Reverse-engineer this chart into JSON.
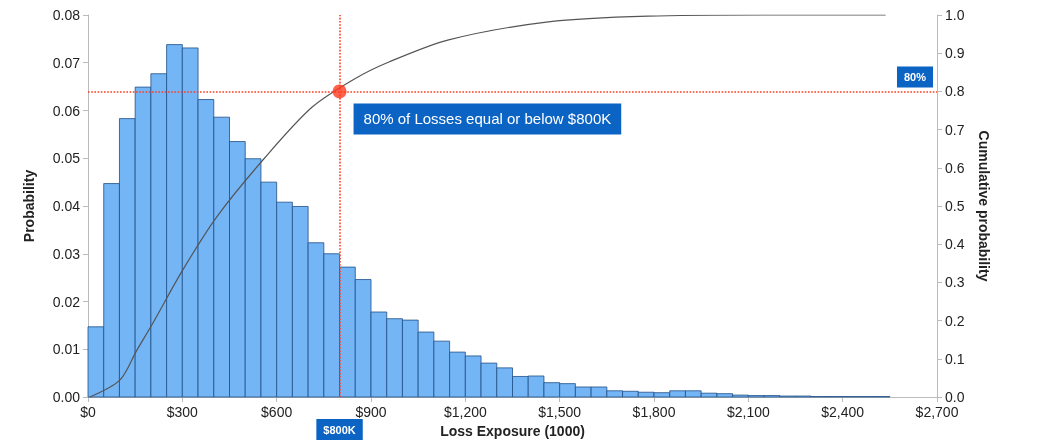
{
  "chart_data": {
    "type": "histogram",
    "xlabel": "Loss Exposure (1000)",
    "ylabel": "Probability",
    "y2label": "Cumulative probability",
    "bins": [
      0,
      50,
      100,
      150,
      200,
      250,
      300,
      350,
      400,
      450,
      500,
      550,
      600,
      650,
      700,
      750,
      800,
      850,
      900,
      950,
      1000,
      1050,
      1100,
      1150,
      1200,
      1250,
      1300,
      1350,
      1400,
      1450,
      1500,
      1550,
      1600,
      1650,
      1700,
      1750,
      1800,
      1850,
      1900,
      1950,
      2000,
      2050,
      2100,
      2150,
      2200,
      2250,
      2300,
      2350,
      2400,
      2450,
      2500,
      2550
    ],
    "series": [
      {
        "type": "histogram",
        "color": "#74b5f6",
        "values": [
          0.0147,
          0.0447,
          0.0583,
          0.0649,
          0.0677,
          0.0738,
          0.0731,
          0.0623,
          0.0586,
          0.0535,
          0.0499,
          0.045,
          0.0408,
          0.0399,
          0.0323,
          0.03,
          0.0272,
          0.0246,
          0.0178,
          0.0164,
          0.0161,
          0.0136,
          0.0117,
          0.0094,
          0.0086,
          0.0071,
          0.0061,
          0.0043,
          0.0044,
          0.003,
          0.0028,
          0.0021,
          0.0021,
          0.0013,
          0.0012,
          0.001,
          0.0009,
          0.0013,
          0.0013,
          0.0008,
          0.0007,
          0.0004,
          0.0003,
          0.0003,
          0.0002,
          0.0002,
          0.0001,
          0.0001,
          0.0001,
          0.0001,
          0.0001
        ]
      },
      {
        "type": "line",
        "axis": "y2",
        "color": "#555555",
        "marker": "none",
        "x": [
          6,
          101,
          155,
          206,
          301,
          409,
          561,
          713,
          846,
          957,
          1147,
          1464,
          1781,
          2193,
          2535
        ],
        "values": [
          0,
          0.044,
          0.122,
          0.193,
          0.332,
          0.471,
          0.625,
          0.759,
          0.832,
          0.877,
          0.935,
          0.982,
          0.997,
          1.0,
          1.0
        ]
      },
      {
        "type": "scatter",
        "axis": "y2",
        "color": "#ff3b1f",
        "marker": "circle",
        "x": [
          800
        ],
        "values": [
          0.8
        ]
      }
    ],
    "xlim": [
      0,
      2700
    ],
    "xticks": [
      {
        "value": 0,
        "label": "$0"
      },
      {
        "value": 300,
        "label": "$300"
      },
      {
        "value": 600,
        "label": "$600"
      },
      {
        "value": 900,
        "label": "$900"
      },
      {
        "value": 1200,
        "label": "$1,200"
      },
      {
        "value": 1500,
        "label": "$1,500"
      },
      {
        "value": 1800,
        "label": "$1,800"
      },
      {
        "value": 2100,
        "label": "$2,100"
      },
      {
        "value": 2400,
        "label": "$2,400"
      },
      {
        "value": 2700,
        "label": "$2,700"
      }
    ],
    "ylim": [
      0,
      0.08
    ],
    "yticks": [
      {
        "value": 0,
        "label": "0.00"
      },
      {
        "value": 0.01,
        "label": "0.01"
      },
      {
        "value": 0.02,
        "label": "0.02"
      },
      {
        "value": 0.03,
        "label": "0.03"
      },
      {
        "value": 0.04,
        "label": "0.04"
      },
      {
        "value": 0.05,
        "label": "0.05"
      },
      {
        "value": 0.06,
        "label": "0.06"
      },
      {
        "value": 0.07,
        "label": "0.07"
      },
      {
        "value": 0.08,
        "label": "0.08"
      }
    ],
    "y2lim": [
      0,
      1
    ],
    "y2ticks": [
      {
        "value": 0,
        "label": "0.0"
      },
      {
        "value": 0.1,
        "label": "0.1"
      },
      {
        "value": 0.2,
        "label": "0.2"
      },
      {
        "value": 0.3,
        "label": "0.3"
      },
      {
        "value": 0.4,
        "label": "0.4"
      },
      {
        "value": 0.5,
        "label": "0.5"
      },
      {
        "value": 0.6,
        "label": "0.6"
      },
      {
        "value": 0.7,
        "label": "0.7"
      },
      {
        "value": 0.8,
        "label": "0.8"
      },
      {
        "value": 0.9,
        "label": "0.9"
      },
      {
        "value": 1,
        "label": "1.0"
      }
    ],
    "ref_lines": [
      {
        "axis": "x",
        "value": 800,
        "label": "$800K",
        "color": "#ff3b1f",
        "line_style": "dotted"
      },
      {
        "axis": "y2",
        "value": 0.8,
        "label": "80%",
        "color": "#ff3b1f",
        "line_style": "dotted"
      }
    ],
    "annotations": [
      "80% of Losses equal or below $800K"
    ],
    "grid": false
  }
}
